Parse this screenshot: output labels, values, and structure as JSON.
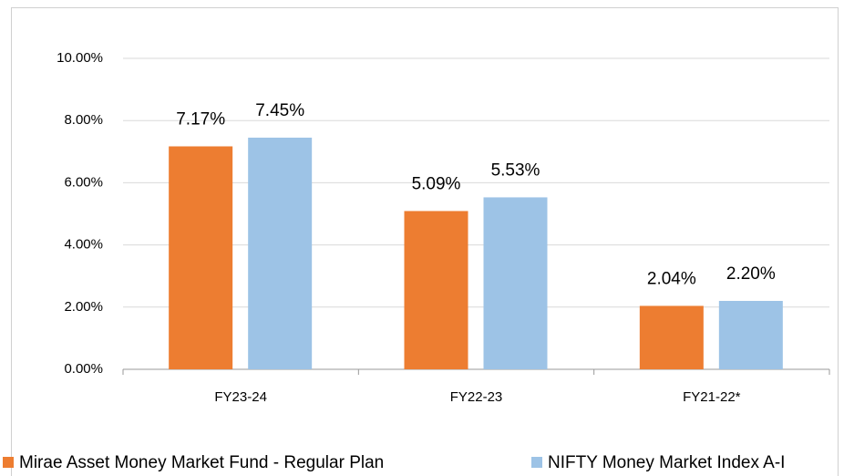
{
  "chart_data": {
    "type": "bar",
    "categories": [
      "FY23-24",
      "FY22-23",
      "FY21-22*"
    ],
    "series": [
      {
        "name": "Mirae Asset Money Market Fund - Regular Plan",
        "color": "#ed7d31",
        "values": [
          7.17,
          5.09,
          2.04
        ],
        "value_labels": [
          "7.17%",
          "5.09%",
          "2.04%"
        ]
      },
      {
        "name": "NIFTY Money Market Index A-I",
        "color": "#9dc3e6",
        "values": [
          7.45,
          5.53,
          2.2
        ],
        "value_labels": [
          "7.45%",
          "5.53%",
          "2.20%"
        ]
      }
    ],
    "ylim": [
      0,
      10
    ],
    "yticks": [
      {
        "value": 0,
        "label": "0.00%"
      },
      {
        "value": 2,
        "label": "2.00%"
      },
      {
        "value": 4,
        "label": "4.00%"
      },
      {
        "value": 6,
        "label": "6.00%"
      },
      {
        "value": 8,
        "label": "8.00%"
      },
      {
        "value": 10,
        "label": "10.00%"
      }
    ],
    "grid": true,
    "legend": "bottom"
  }
}
